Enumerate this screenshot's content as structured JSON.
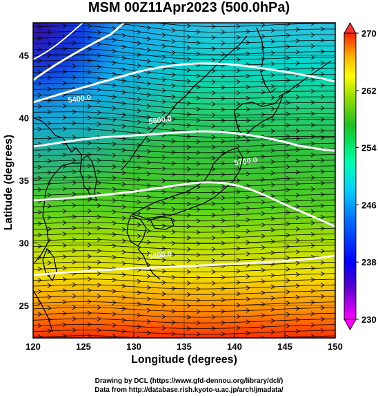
{
  "title": "MSM 00Z11Apr2023 (500.0hPa)",
  "xaxis": {
    "label": "Longitude (degrees)",
    "ticks": [
      120,
      125,
      130,
      135,
      140,
      145,
      150
    ],
    "range": [
      120,
      150
    ]
  },
  "yaxis": {
    "label": "Latitude  (degrees)",
    "ticks": [
      25,
      30,
      35,
      40,
      45
    ],
    "range": [
      22.4,
      47.6
    ]
  },
  "colorbar": {
    "ticks": [
      230,
      238,
      246,
      254,
      262,
      270
    ],
    "range": [
      230,
      270
    ],
    "colors": [
      "#ff00ff",
      "#5000d0",
      "#0000ff",
      "#0070ff",
      "#00d0ff",
      "#00ffb0",
      "#00e060",
      "#20c020",
      "#9ae000",
      "#ffff00",
      "#ffb000",
      "#ff5000",
      "#ff2000"
    ]
  },
  "contours": [
    {
      "label": "5400.0",
      "lon": 123.5,
      "lat": 41.2
    },
    {
      "label": "5600.0",
      "lon": 131.5,
      "lat": 39.5
    },
    {
      "label": "5700.0",
      "lon": 140.0,
      "lat": 36.2
    },
    {
      "label": "5800.0",
      "lon": 131.5,
      "lat": 28.7
    }
  ],
  "credits": [
    "Drawing by DCL (https://www.gfd-dennou.org/library/dcl/)",
    "Data from http://database.rish.kyoto-u.ac.jp/arch/jmadata/"
  ]
}
